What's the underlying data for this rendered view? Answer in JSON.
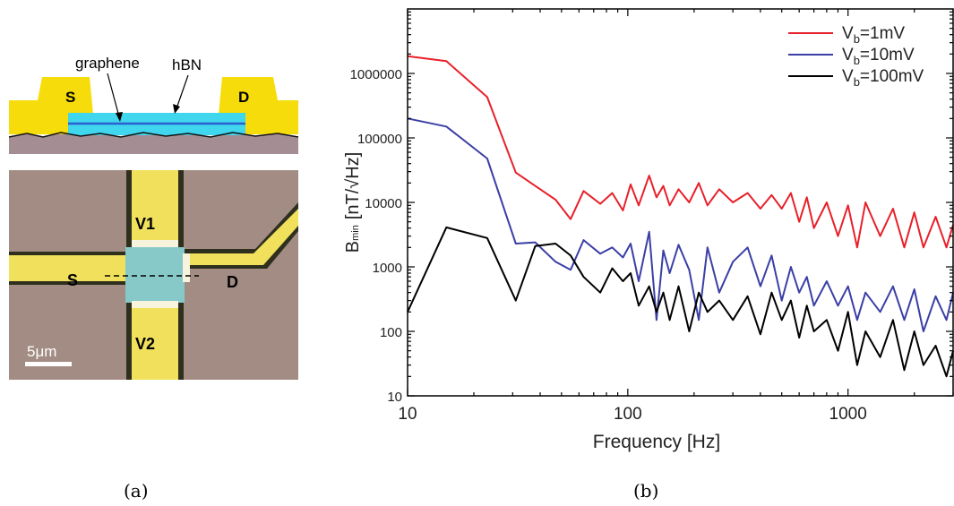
{
  "captions": {
    "a": "(a)",
    "b": "(b)"
  },
  "schematic": {
    "source_label": "S",
    "drain_label": "D",
    "graphene_label": "graphene",
    "hbn_label": "hBN",
    "colors": {
      "gold": "#f5dc0a",
      "hbn": "#3fd6ee",
      "substrate": "#a48e93"
    }
  },
  "micrograph": {
    "labels": {
      "v1": "V1",
      "v2": "V2",
      "s": "S",
      "d": "D"
    },
    "scalebar": "5μm",
    "colors": {
      "background": "#a28c83",
      "lead": "#f0e05c",
      "channel": "#86c9c8"
    }
  },
  "chart_data": {
    "type": "line",
    "xlabel": "Frequency [Hz]",
    "ylabel": {
      "main": "B",
      "sub": "min",
      "units": "[nT/√Hz]"
    },
    "xscale": "log",
    "yscale": "log",
    "xlim": [
      10,
      3000
    ],
    "ylim": [
      10,
      10000000
    ],
    "xticks": [
      10,
      100,
      1000
    ],
    "xtick_labels": [
      "10",
      "100",
      "1000"
    ],
    "yticks": [
      10,
      100,
      1000,
      10000,
      100000,
      1000000
    ],
    "ytick_labels": [
      "10",
      "100",
      "1000",
      "10000",
      "100000",
      "1000000"
    ],
    "grid": false,
    "legend_position": "top-right",
    "series": [
      {
        "name": "Vb=1mV",
        "legend": {
          "main": "V",
          "sub": "b",
          "rest": "=1mV"
        },
        "color": "#e8202a",
        "x": [
          10,
          15,
          23,
          31,
          38,
          47,
          55,
          63,
          75,
          85,
          95,
          103,
          112,
          125,
          135,
          145,
          155,
          170,
          190,
          210,
          230,
          260,
          300,
          350,
          400,
          450,
          500,
          550,
          600,
          650,
          700,
          800,
          900,
          1000,
          1100,
          1200,
          1400,
          1600,
          1800,
          2000,
          2200,
          2500,
          2800,
          3000
        ],
        "y": [
          1850000,
          1550000,
          430000,
          29000,
          18000,
          11000,
          5500,
          15000,
          9500,
          14000,
          7500,
          19000,
          9000,
          26000,
          12000,
          18000,
          9000,
          16000,
          10000,
          20000,
          9000,
          16000,
          10000,
          14000,
          8000,
          13000,
          8000,
          14000,
          5000,
          12000,
          4000,
          10000,
          3000,
          9000,
          2000,
          10000,
          3000,
          8000,
          2000,
          7000,
          2000,
          6000,
          2000,
          4500
        ]
      },
      {
        "name": "Vb=10mV",
        "legend": {
          "main": "V",
          "sub": "b",
          "rest": "=10mV"
        },
        "color": "#3b3fa5",
        "x": [
          10,
          15,
          23,
          31,
          38,
          47,
          55,
          63,
          75,
          85,
          95,
          103,
          112,
          125,
          135,
          145,
          155,
          170,
          190,
          210,
          230,
          260,
          300,
          350,
          400,
          450,
          500,
          550,
          600,
          650,
          700,
          800,
          900,
          1000,
          1100,
          1200,
          1400,
          1600,
          1800,
          2000,
          2200,
          2500,
          2800,
          3000
        ],
        "y": [
          200000,
          150000,
          48000,
          2300,
          2400,
          1200,
          900,
          2600,
          1600,
          2000,
          1400,
          2300,
          600,
          3500,
          150,
          1800,
          800,
          2200,
          900,
          150,
          2000,
          400,
          1200,
          2000,
          500,
          1500,
          300,
          1000,
          400,
          700,
          250,
          600,
          250,
          500,
          150,
          400,
          200,
          500,
          150,
          450,
          100,
          350,
          150,
          400
        ]
      },
      {
        "name": "Vb=100mV",
        "legend": {
          "main": "V",
          "sub": "b",
          "rest": "=100mV"
        },
        "color": "#000000",
        "x": [
          10,
          15,
          23,
          31,
          38,
          47,
          55,
          63,
          75,
          85,
          95,
          103,
          112,
          125,
          135,
          145,
          155,
          170,
          190,
          210,
          230,
          260,
          300,
          350,
          400,
          450,
          500,
          550,
          600,
          650,
          700,
          800,
          900,
          1000,
          1100,
          1200,
          1400,
          1600,
          1800,
          2000,
          2200,
          2500,
          2800,
          3000
        ],
        "y": [
          200,
          4100,
          2800,
          300,
          2100,
          2300,
          1500,
          700,
          400,
          950,
          600,
          800,
          250,
          500,
          200,
          400,
          150,
          500,
          100,
          400,
          200,
          300,
          150,
          350,
          90,
          400,
          150,
          300,
          80,
          250,
          100,
          150,
          50,
          200,
          30,
          100,
          40,
          150,
          25,
          100,
          30,
          60,
          20,
          50
        ]
      }
    ]
  }
}
